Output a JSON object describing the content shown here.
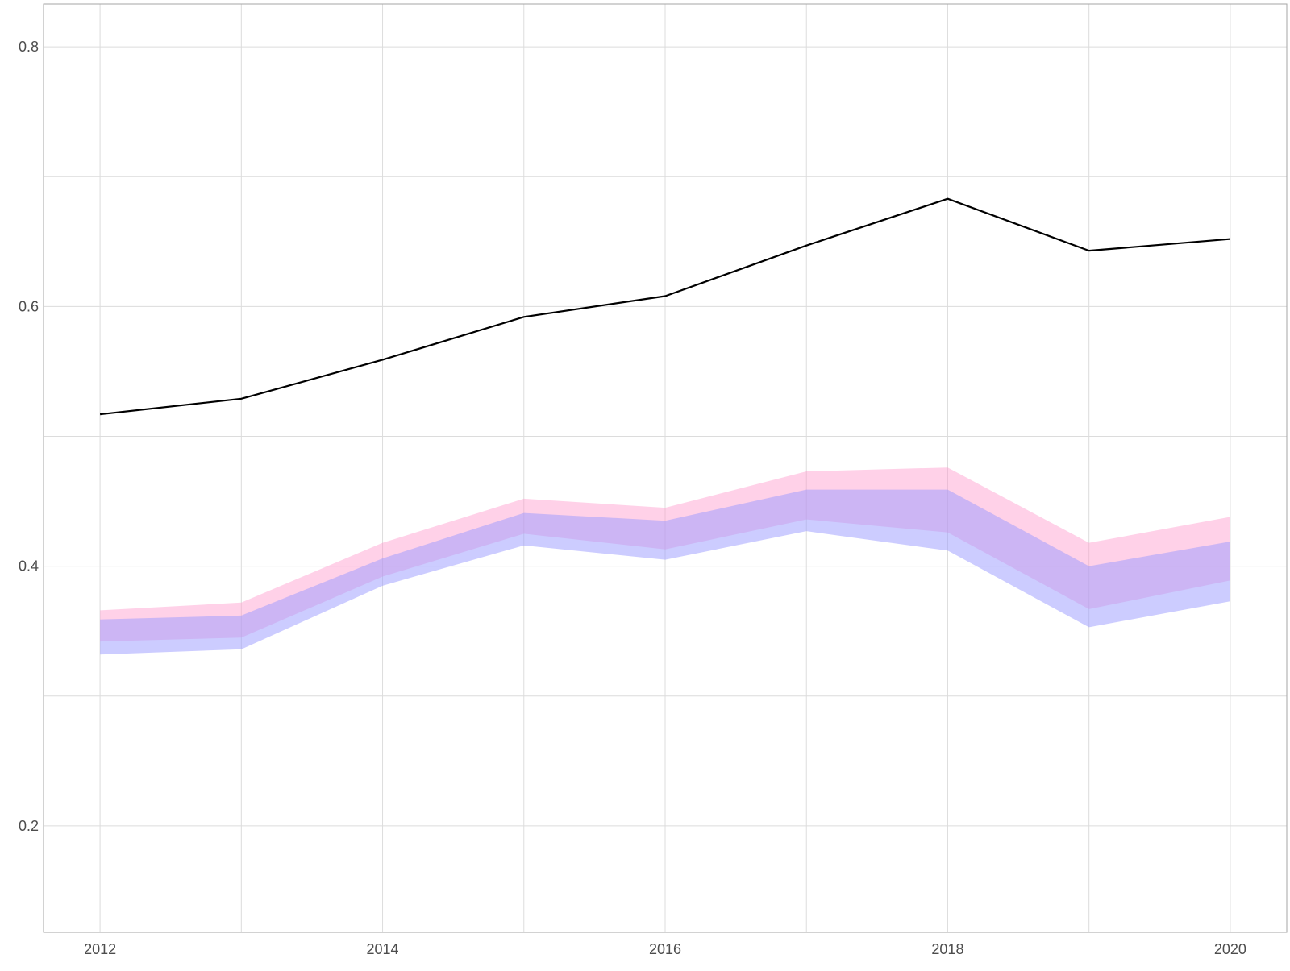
{
  "chart_data": {
    "type": "area",
    "title": "",
    "xlabel": "",
    "ylabel": "",
    "x": [
      2012,
      2013,
      2014,
      2015,
      2016,
      2017,
      2018,
      2019,
      2020
    ],
    "x_ticks": [
      2012,
      2014,
      2016,
      2018,
      2020
    ],
    "x_tick_labels": [
      "2012",
      "2014",
      "2016",
      "2018",
      "2020"
    ],
    "y_ticks": [
      0.2,
      0.4,
      0.6,
      0.8
    ],
    "y_tick_labels": [
      "0.2",
      "0.4",
      "0.6",
      "0.8"
    ],
    "y_minor_ticks": [
      0.3,
      0.5,
      0.7
    ],
    "xlim": [
      2011.6,
      2020.4
    ],
    "ylim": [
      0.118,
      0.833
    ],
    "grid": true,
    "legend": "none",
    "series": [
      {
        "kind": "line",
        "color": "#000000",
        "values": [
          0.517,
          0.529,
          0.559,
          0.592,
          0.608,
          0.647,
          0.683,
          0.643,
          0.652
        ]
      },
      {
        "kind": "band",
        "color": "#ff99cc",
        "opacity": 0.45,
        "lower": [
          0.342,
          0.345,
          0.392,
          0.425,
          0.413,
          0.436,
          0.426,
          0.367,
          0.389
        ],
        "upper": [
          0.366,
          0.372,
          0.418,
          0.452,
          0.445,
          0.473,
          0.476,
          0.418,
          0.438
        ]
      },
      {
        "kind": "band",
        "color": "#9999ff",
        "opacity": 0.5,
        "lower": [
          0.332,
          0.336,
          0.385,
          0.416,
          0.405,
          0.427,
          0.412,
          0.353,
          0.373
        ],
        "upper": [
          0.359,
          0.362,
          0.406,
          0.441,
          0.435,
          0.459,
          0.459,
          0.4,
          0.419
        ]
      }
    ]
  }
}
